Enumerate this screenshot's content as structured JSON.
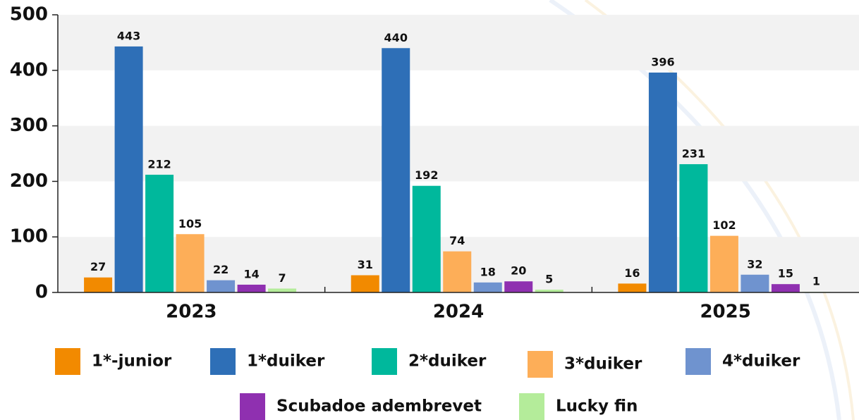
{
  "chart_data": {
    "type": "bar",
    "categories": [
      "2023",
      "2024",
      "2025"
    ],
    "series": [
      {
        "name": "1*-junior",
        "color": "#f28a00",
        "values": [
          27,
          31,
          16
        ]
      },
      {
        "name": "1*duiker",
        "color": "#2e6fb7",
        "values": [
          443,
          440,
          396
        ]
      },
      {
        "name": "2*duiker",
        "color": "#00b89c",
        "values": [
          212,
          192,
          231
        ]
      },
      {
        "name": "3*duiker",
        "color": "#fdae58",
        "values": [
          105,
          74,
          102
        ]
      },
      {
        "name": "4*duiker",
        "color": "#6f93cf",
        "values": [
          22,
          18,
          32
        ]
      },
      {
        "name": "Scubadoe adembrevet",
        "color": "#8f30b0",
        "values": [
          14,
          20,
          15
        ]
      },
      {
        "name": "Lucky fin",
        "color": "#b4ec9a",
        "values": [
          7,
          5,
          1
        ]
      }
    ],
    "ylim": [
      0,
      500
    ],
    "yticks": [
      0,
      100,
      200,
      300,
      400,
      500
    ],
    "grid": true,
    "legend": "bottom"
  }
}
